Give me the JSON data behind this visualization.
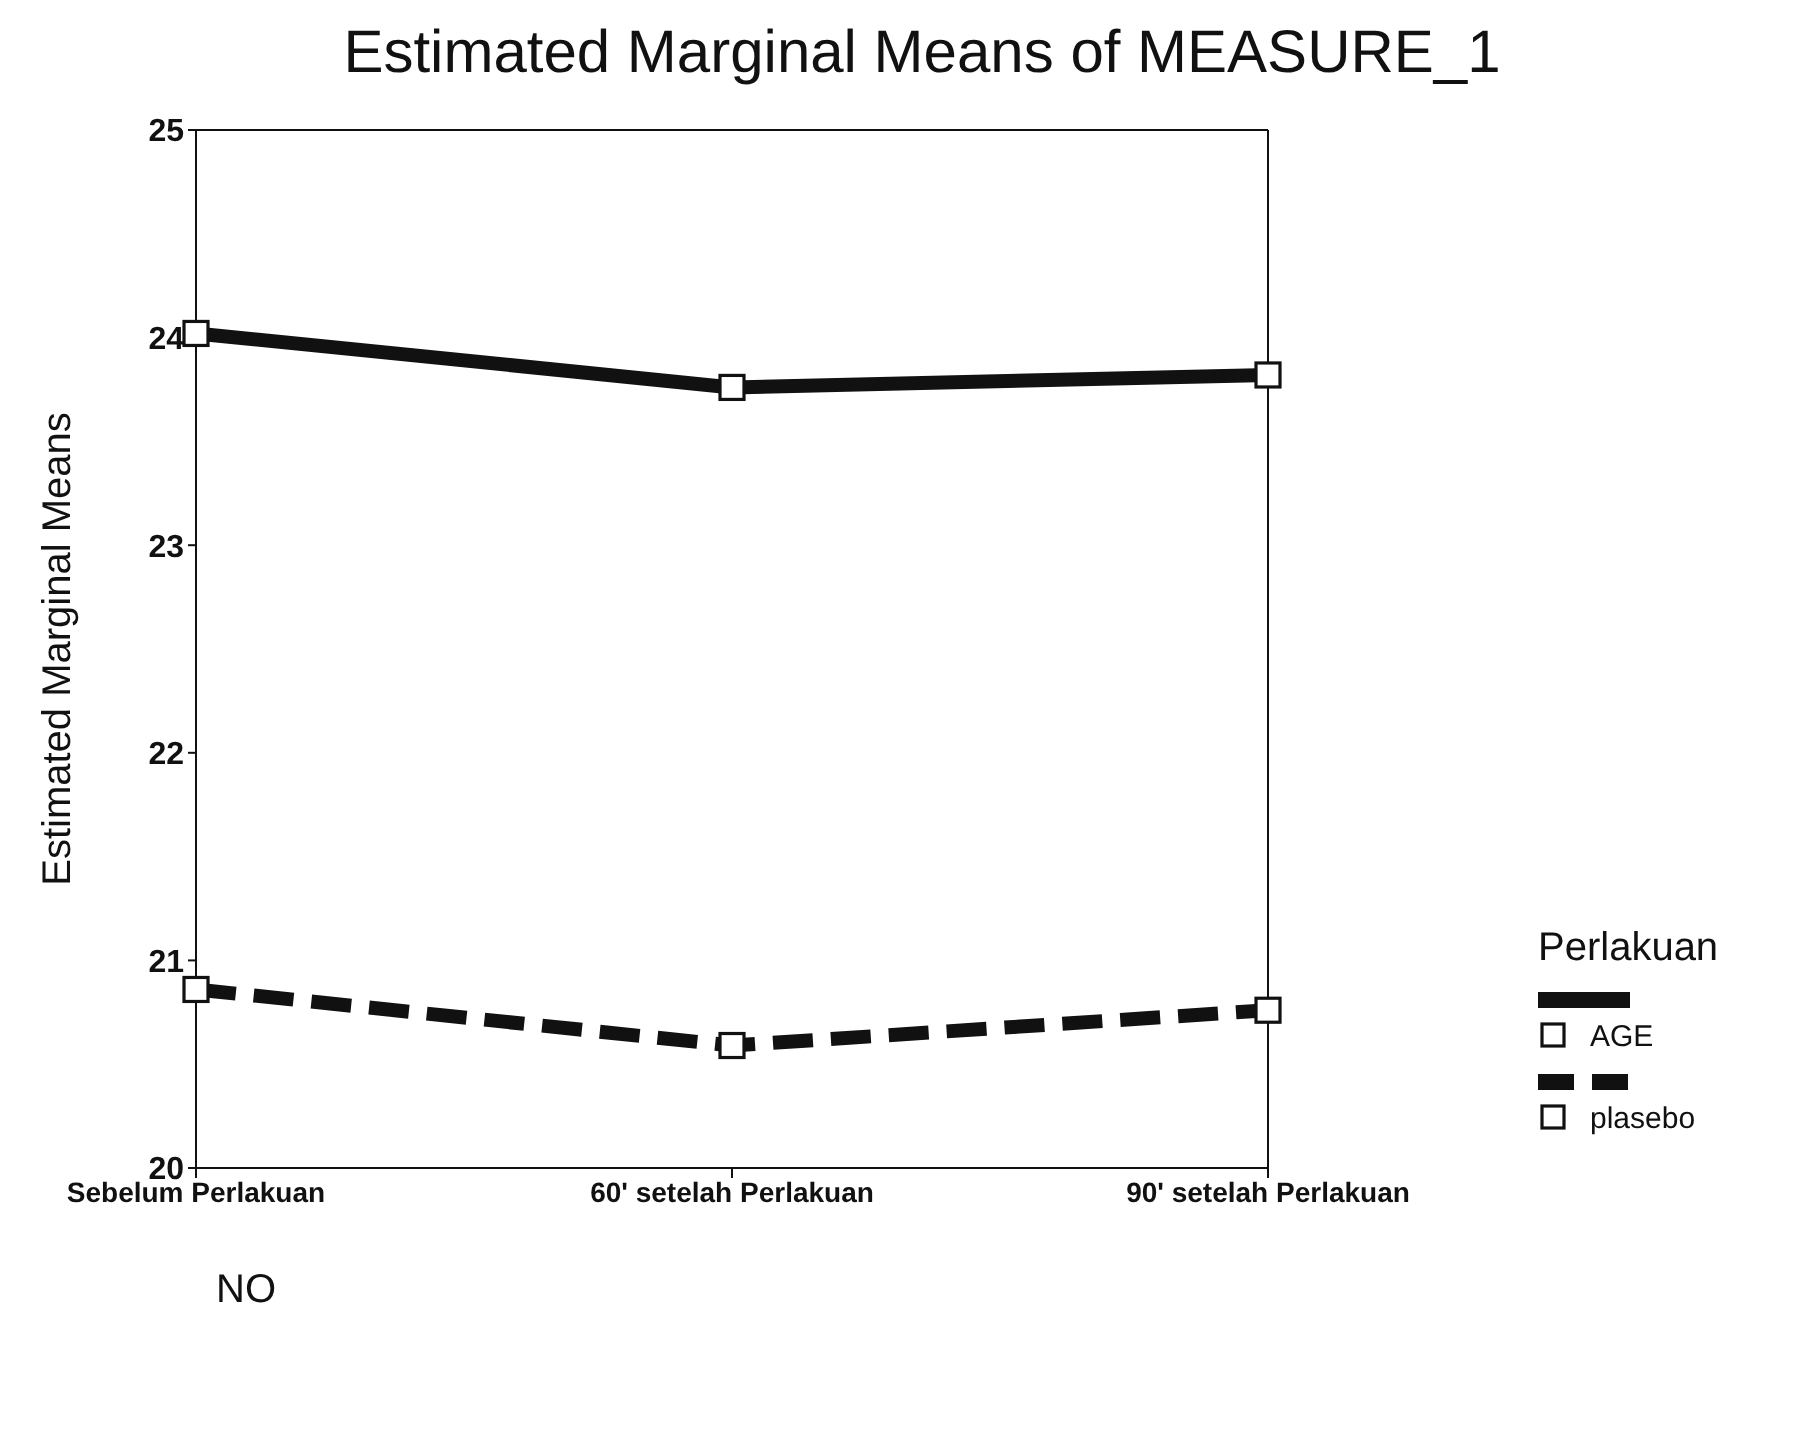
{
  "chart_data": {
    "type": "line",
    "title": "Estimated Marginal Means of MEASURE_1",
    "ylabel": "Estimated Marginal Means",
    "legend_title": "Perlakuan",
    "categories": [
      "Sebelum Perlakuan",
      "60' setelah Perlakuan",
      "90' setelah Perlakuan"
    ],
    "series": [
      {
        "name": "AGE",
        "color": "#111111",
        "line_style": "solid",
        "values": [
          24.02,
          23.76,
          23.82
        ]
      },
      {
        "name": "plasebo",
        "color": "#111111",
        "line_style": "dashed",
        "values": [
          20.86,
          20.59,
          20.76
        ]
      }
    ],
    "ylim": [
      20,
      25
    ],
    "yticks": [
      20,
      21,
      22,
      23,
      24,
      25
    ],
    "grid": false,
    "legend": "right",
    "marker": "square",
    "annotations": [
      "NO"
    ]
  }
}
